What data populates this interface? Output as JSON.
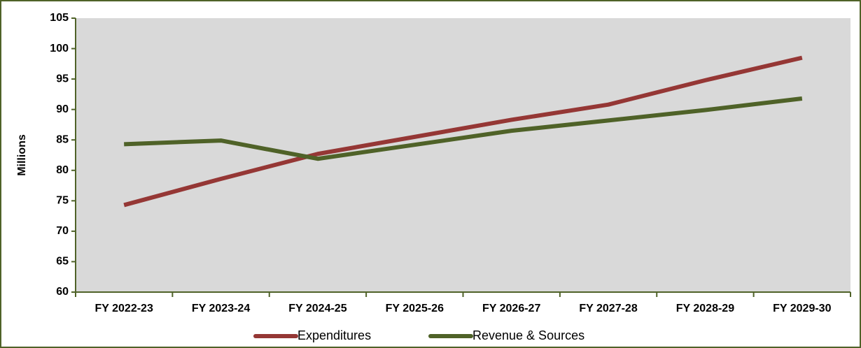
{
  "chart_data": {
    "type": "line",
    "y_label": "Millions",
    "categories": [
      "FY 2022-23",
      "FY 2023-24",
      "FY 2024-25",
      "FY 2025-26",
      "FY 2026-27",
      "FY 2027-28",
      "FY 2028-29",
      "FY 2029-30"
    ],
    "series": [
      {
        "name": "Expenditures",
        "color": "#953735",
        "values": [
          74.3,
          78.6,
          82.7,
          85.5,
          88.3,
          90.8,
          94.8,
          98.5
        ]
      },
      {
        "name": "Revenue & Sources",
        "color": "#4f6228",
        "values": [
          84.3,
          84.9,
          81.9,
          84.2,
          86.5,
          88.2,
          89.9,
          91.8
        ]
      }
    ],
    "ylim": [
      60,
      105
    ],
    "yticks": [
      60,
      65,
      70,
      75,
      80,
      85,
      90,
      95,
      100,
      105
    ],
    "grid": false,
    "legend": "bottom"
  }
}
